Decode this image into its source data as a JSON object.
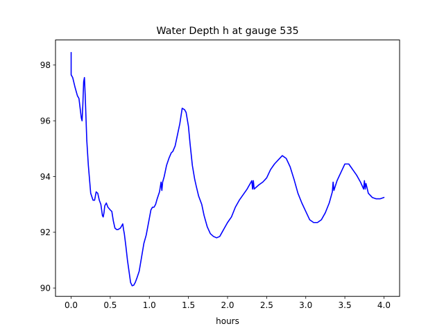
{
  "chart_data": {
    "type": "line",
    "title": "Water Depth h at gauge 535",
    "xlabel": "hours",
    "ylabel": "",
    "xlim": [
      -0.2,
      4.2
    ],
    "ylim": [
      89.7,
      98.9
    ],
    "xticks": [
      0.0,
      0.5,
      1.0,
      1.5,
      2.0,
      2.5,
      3.0,
      3.5,
      4.0
    ],
    "xtick_labels": [
      "0.0",
      "0.5",
      "1.0",
      "1.5",
      "2.0",
      "2.5",
      "3.0",
      "3.5",
      "4.0"
    ],
    "yticks": [
      90,
      92,
      94,
      96,
      98
    ],
    "ytick_labels": [
      "90",
      "92",
      "94",
      "96",
      "98"
    ],
    "grid": false,
    "series": [
      {
        "color": "#0000ff",
        "x": [
          0.0,
          0.0,
          0.02,
          0.05,
          0.08,
          0.1,
          0.13,
          0.14,
          0.15,
          0.16,
          0.17,
          0.18,
          0.2,
          0.22,
          0.25,
          0.28,
          0.3,
          0.32,
          0.34,
          0.36,
          0.38,
          0.4,
          0.41,
          0.42,
          0.43,
          0.45,
          0.47,
          0.5,
          0.52,
          0.54,
          0.56,
          0.58,
          0.6,
          0.63,
          0.66,
          0.67,
          0.68,
          0.7,
          0.72,
          0.74,
          0.76,
          0.78,
          0.8,
          0.82,
          0.84,
          0.87,
          0.9,
          0.93,
          0.96,
          1.0,
          1.02,
          1.04,
          1.06,
          1.08,
          1.1,
          1.13,
          1.15,
          1.16,
          1.17,
          1.19,
          1.22,
          1.25,
          1.28,
          1.3,
          1.33,
          1.36,
          1.39,
          1.42,
          1.45,
          1.47,
          1.5,
          1.52,
          1.55,
          1.58,
          1.6,
          1.63,
          1.67,
          1.7,
          1.74,
          1.78,
          1.82,
          1.86,
          1.9,
          1.93,
          1.96,
          2.0,
          2.05,
          2.1,
          2.15,
          2.2,
          2.25,
          2.3,
          2.31,
          2.32,
          2.33,
          2.34,
          2.4,
          2.45,
          2.5,
          2.55,
          2.6,
          2.65,
          2.7,
          2.75,
          2.8,
          2.85,
          2.9,
          2.95,
          3.0,
          3.05,
          3.1,
          3.15,
          3.2,
          3.25,
          3.3,
          3.34,
          3.35,
          3.36,
          3.4,
          3.45,
          3.5,
          3.55,
          3.6,
          3.65,
          3.7,
          3.74,
          3.75,
          3.76,
          3.77,
          3.8,
          3.85,
          3.9,
          3.95,
          4.0
        ],
        "y": [
          98.45,
          97.65,
          97.55,
          97.2,
          96.9,
          96.8,
          96.1,
          96.0,
          96.6,
          97.4,
          97.55,
          96.9,
          95.3,
          94.4,
          93.4,
          93.15,
          93.15,
          93.45,
          93.4,
          93.15,
          93.0,
          92.6,
          92.55,
          92.7,
          92.95,
          93.05,
          92.9,
          92.8,
          92.75,
          92.4,
          92.15,
          92.1,
          92.1,
          92.15,
          92.3,
          92.1,
          91.95,
          91.5,
          91.0,
          90.6,
          90.2,
          90.08,
          90.1,
          90.2,
          90.35,
          90.6,
          91.1,
          91.6,
          91.9,
          92.5,
          92.8,
          92.9,
          92.9,
          93.0,
          93.2,
          93.45,
          93.8,
          93.5,
          93.8,
          94.0,
          94.4,
          94.65,
          94.85,
          94.9,
          95.1,
          95.5,
          95.9,
          96.45,
          96.4,
          96.3,
          95.8,
          95.2,
          94.4,
          93.9,
          93.65,
          93.3,
          93.0,
          92.6,
          92.2,
          91.95,
          91.85,
          91.8,
          91.85,
          92.0,
          92.15,
          92.35,
          92.55,
          92.9,
          93.15,
          93.35,
          93.55,
          93.8,
          93.85,
          93.55,
          93.85,
          93.55,
          93.7,
          93.8,
          93.95,
          94.25,
          94.45,
          94.6,
          94.75,
          94.65,
          94.35,
          93.9,
          93.4,
          93.05,
          92.75,
          92.45,
          92.35,
          92.35,
          92.45,
          92.7,
          93.05,
          93.45,
          93.8,
          93.5,
          93.85,
          94.15,
          94.45,
          94.45,
          94.25,
          94.05,
          93.8,
          93.55,
          93.85,
          93.55,
          93.75,
          93.4,
          93.25,
          93.2,
          93.2,
          93.25
        ]
      }
    ]
  }
}
